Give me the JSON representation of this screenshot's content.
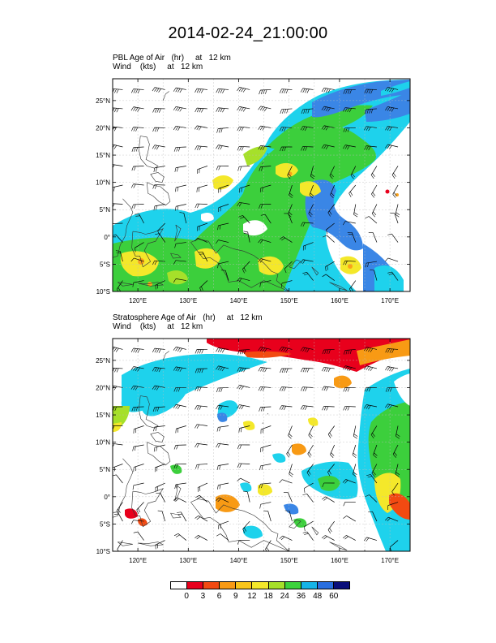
{
  "title": "2014-02-24_21:00:00",
  "panels": [
    {
      "id": "pbl",
      "field_label": "PBL Age of Air",
      "field_unit": "(hr)",
      "field_level": "at",
      "field_height": "12 km",
      "wind_label": "Wind",
      "wind_unit": "(kts)",
      "wind_level": "at",
      "wind_height": "12 km"
    },
    {
      "id": "strat",
      "field_label": "Stratosphere Age of Air",
      "field_unit": "(hr)",
      "field_level": "at",
      "field_height": "12 km",
      "wind_label": "Wind",
      "wind_unit": "(kts)",
      "wind_level": "at",
      "wind_height": "12 km"
    }
  ],
  "lat_labels": [
    "25°N",
    "20°N",
    "15°N",
    "10°N",
    "5°N",
    "0°",
    "5°S",
    "10°S"
  ],
  "lon_labels": [
    "120°E",
    "130°E",
    "140°E",
    "150°E",
    "160°E",
    "170°E"
  ],
  "colorbar": {
    "labels": [
      "0",
      "3",
      "6",
      "9",
      "12",
      "18",
      "24",
      "36",
      "48",
      "60"
    ],
    "colors": [
      "#ffffff",
      "#e8001c",
      "#f24a12",
      "#f89a14",
      "#f9c51a",
      "#f4e82a",
      "#a6e02a",
      "#3cd23c",
      "#15b4e8",
      "#2a6fe0",
      "#0a0e7a"
    ]
  },
  "palette": {
    "cyan": "#1ed2ec",
    "blue": "#3a86e6",
    "green": "#3ccf3c",
    "lightgreen": "#a6e02a",
    "yellow": "#f4e82a",
    "orange": "#f9a21a",
    "red": "#e8001c",
    "coast": "#333333",
    "grid": "#bdbdbd"
  }
}
